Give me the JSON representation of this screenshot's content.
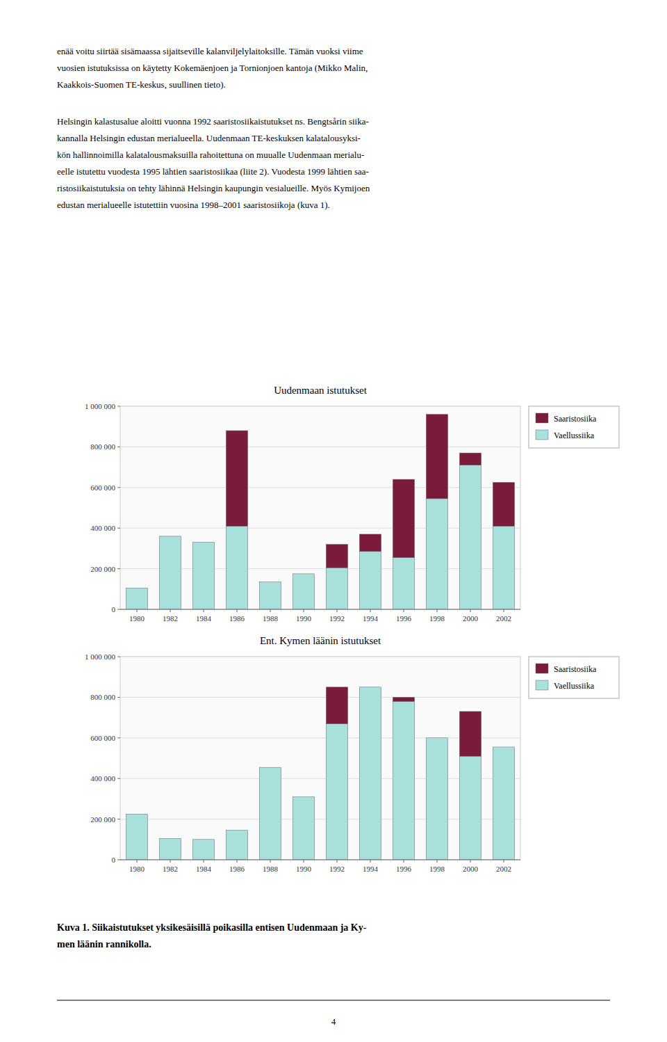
{
  "paragraphs": [
    [
      "enää voitu siirtää sisämaassa sijaitseville kalanviljelylaitoksille. Tämän vuoksi viime",
      "vuosien istutuksissa on käytetty Kokemäenjoen ja Tornionjoen kantoja (Mikko Malin,",
      "Kaakkois-Suomen TE-keskus, suullinen tieto)."
    ],
    [
      "Helsingin kalastusalue aloitti vuonna 1992 saaristosiikaistutukset ns. Bengtsårin siika-",
      "kannalla Helsingin edustan merialueella. Uudenmaan TE-keskuksen kalatalousyksi-",
      "kön hallinnoimilla kalatalousmaksuilla rahoitettuna on muualle Uudenmaan merialu-",
      "eelle istutettu vuodesta 1995 lähtien saaristosiikaa (liite 2). Vuodesta 1999 lähtien saa-",
      "ristosiikaistutuksia on tehty lähinnä Helsingin kaupungin vesialueille. Myös Kymijoen",
      "edustan merialueelle istutettiin vuosina 1998–2001 saaristosiikoja (kuva 1)."
    ]
  ],
  "caption": [
    "Kuva 1. Siikaistutukset yksikesäisillä poikasilla entisen Uudenmaan ja Ky-",
    "men läänin rannikolla."
  ],
  "page_number": "4",
  "chart_data": [
    {
      "type": "bar",
      "stacked": true,
      "title": "Uudenmaan istutukset",
      "categories": [
        "1980",
        "1982",
        "1984",
        "1986",
        "1988",
        "1990",
        "1992",
        "1994",
        "1996",
        "1998",
        "2000",
        "2002"
      ],
      "series": [
        {
          "name": "Vaellussiika",
          "color": "#A8E0DC",
          "values": [
            105000,
            360000,
            330000,
            410000,
            135000,
            175000,
            205000,
            285000,
            255000,
            545000,
            710000,
            410000
          ]
        },
        {
          "name": "Saaristosiika",
          "color": "#7B1B3B",
          "values": [
            0,
            0,
            0,
            470000,
            0,
            0,
            115000,
            85000,
            385000,
            415000,
            60000,
            215000
          ]
        }
      ],
      "ylim": [
        0,
        1000000
      ],
      "yticks": [
        0,
        {
          "value": 200000,
          "label": "200 000"
        },
        {
          "value": 400000,
          "label": "400 000"
        },
        {
          "value": 600000,
          "label": "600 000"
        },
        {
          "value": 800000,
          "label": "800 000"
        },
        {
          "value": 1000000,
          "label": "1 000 000"
        }
      ],
      "grid": true,
      "legend": "right"
    },
    {
      "type": "bar",
      "stacked": true,
      "title": "Ent. Kymen läänin istutukset",
      "categories": [
        "1980",
        "1982",
        "1984",
        "1986",
        "1988",
        "1990",
        "1992",
        "1994",
        "1996",
        "1998",
        "2000",
        "2002"
      ],
      "series": [
        {
          "name": "Vaellussiika",
          "color": "#A8E0DC",
          "values": [
            225000,
            105000,
            100000,
            145000,
            455000,
            310000,
            670000,
            850000,
            780000,
            600000,
            510000,
            555000
          ]
        },
        {
          "name": "Saaristosiika",
          "color": "#7B1B3B",
          "values": [
            0,
            0,
            0,
            0,
            0,
            0,
            180000,
            0,
            20000,
            0,
            220000,
            0
          ]
        }
      ],
      "ylim": [
        0,
        1000000
      ],
      "yticks": [
        0,
        {
          "value": 200000,
          "label": "200 000"
        },
        {
          "value": 400000,
          "label": "400 000"
        },
        {
          "value": 600000,
          "label": "600 000"
        },
        {
          "value": 800000,
          "label": "800 000"
        },
        {
          "value": 1000000,
          "label": "1 000 000"
        }
      ],
      "grid": true,
      "legend": "right"
    }
  ]
}
